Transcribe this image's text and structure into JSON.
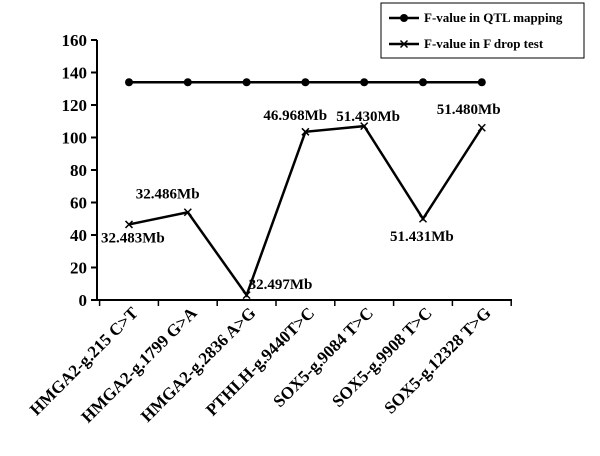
{
  "chart_data": {
    "type": "line",
    "categories": [
      "HMGA2-g.215 C>T",
      "HMGA2-g.1799 G>A",
      "HMGA2-g.2836 A>G",
      "PTHLH-g.9440T>C",
      "SOX5-g.9084 T>C",
      "SOX5-g.9908 T>C",
      "SOX5-g.12328 T>G"
    ],
    "series": [
      {
        "name": "F-value in QTL mapping",
        "values": [
          134,
          134,
          134,
          134,
          134,
          134,
          134
        ],
        "marker": "circle"
      },
      {
        "name": "F-value in F drop test",
        "values": [
          46.5,
          54,
          3,
          103.5,
          107,
          50,
          106
        ],
        "marker": "x"
      }
    ],
    "point_labels": [
      "32.483Mb",
      "32.486Mb",
      "32.497Mb",
      "46.968Mb",
      "51.430Mb",
      "51.431Mb",
      "51.480Mb"
    ],
    "ylim": [
      0,
      160
    ],
    "yticks": [
      0,
      20,
      40,
      60,
      80,
      100,
      120,
      140,
      160
    ],
    "legend_position": "top-right",
    "grid": false,
    "colors": {
      "line": "#000000",
      "background": "#ffffff"
    }
  }
}
